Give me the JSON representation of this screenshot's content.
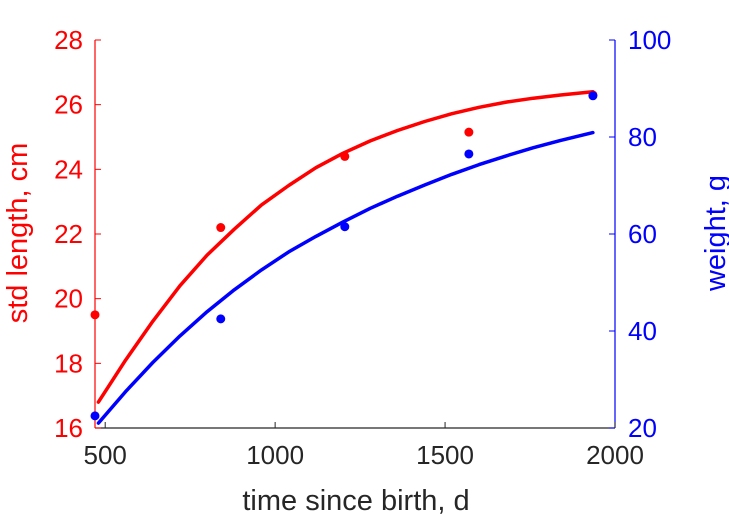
{
  "chart_data": {
    "type": "scatter",
    "xlabel": "time since birth, d",
    "ylabel_left": "std length, cm",
    "ylabel_right": "weight, g",
    "xlim": [
      470,
      2000
    ],
    "ylim_left": [
      16,
      28
    ],
    "ylim_right": [
      20,
      100
    ],
    "xticks": [
      500,
      1000,
      1500,
      2000
    ],
    "yticks_left": [
      16,
      18,
      20,
      22,
      24,
      26,
      28
    ],
    "yticks_right": [
      20,
      40,
      60,
      80,
      100
    ],
    "grid": false,
    "colors": {
      "left": "#ff0000",
      "right": "#0000ff",
      "xaxis": "#262626"
    },
    "series": [
      {
        "axis": "left",
        "color": "#ff0000",
        "points": {
          "x": [
            470,
            840,
            1205,
            1570,
            1935
          ],
          "y": [
            19.5,
            22.2,
            24.4,
            25.15,
            26.3
          ]
        },
        "fit": {
          "x": [
            480,
            560,
            640,
            720,
            800,
            880,
            960,
            1040,
            1120,
            1200,
            1280,
            1360,
            1440,
            1520,
            1600,
            1680,
            1760,
            1840,
            1935
          ],
          "y": [
            16.8,
            18.1,
            19.3,
            20.4,
            21.35,
            22.15,
            22.9,
            23.5,
            24.05,
            24.5,
            24.88,
            25.2,
            25.48,
            25.72,
            25.92,
            26.08,
            26.2,
            26.3,
            26.4
          ]
        }
      },
      {
        "axis": "right",
        "color": "#0000ff",
        "points": {
          "x": [
            470,
            840,
            1205,
            1570,
            1935
          ],
          "y": [
            22.5,
            42.5,
            61.5,
            76.5,
            88.5
          ]
        },
        "fit": {
          "x": [
            480,
            560,
            640,
            720,
            800,
            880,
            960,
            1040,
            1120,
            1200,
            1280,
            1360,
            1440,
            1520,
            1600,
            1680,
            1760,
            1840,
            1935
          ],
          "y": [
            21.0,
            27.5,
            33.5,
            39.0,
            44.0,
            48.5,
            52.6,
            56.3,
            59.5,
            62.5,
            65.3,
            67.8,
            70.1,
            72.3,
            74.3,
            76.1,
            77.8,
            79.3,
            80.9
          ]
        }
      }
    ]
  }
}
